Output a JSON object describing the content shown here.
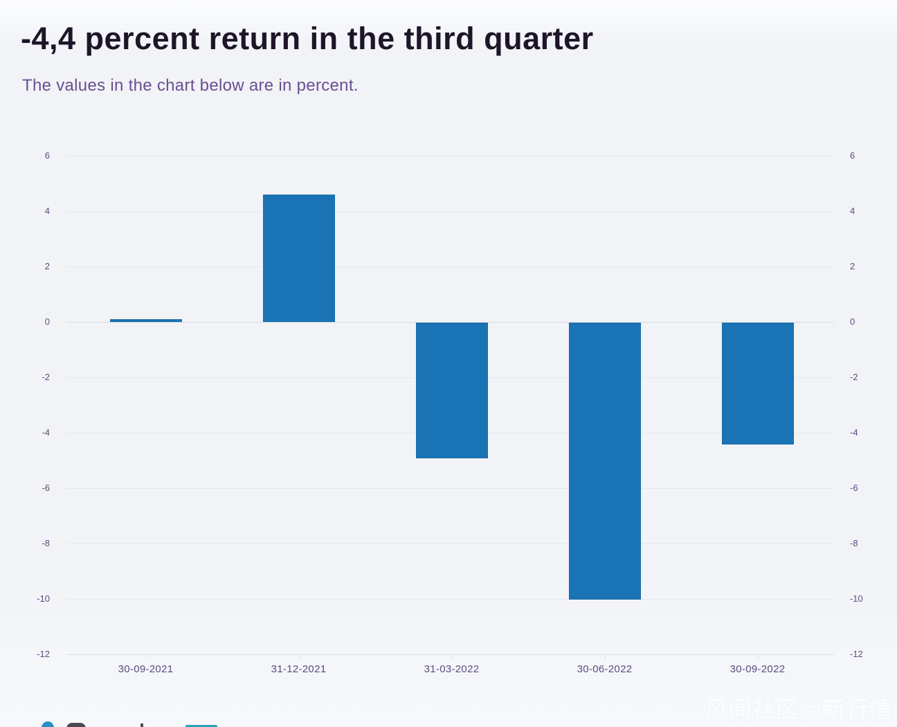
{
  "header": {
    "title": "-4,4 percent return in the third quarter",
    "subtitle": "The values in the chart below are in percent."
  },
  "colors": {
    "bg": "#f1f3f7",
    "title": "#1e1528",
    "subtitle": "#6a4e8f",
    "tick_label": "#5d4a7c",
    "date_label": "#5c4a7d",
    "grid": "#e4e8ef",
    "zero_line": "#d5dae3",
    "axis_line": "#d9dee6",
    "bar": "#1a73b5",
    "legend_dot": "#2a8fc4",
    "legend_dark": "#4a4a55",
    "legend_teal": "#2aa3b8"
  },
  "chart_data": {
    "type": "bar",
    "title": "-4,4 percent return in the third quarter",
    "subtitle": "The values in the chart below are in percent.",
    "unit": "percent",
    "categories": [
      "30-09-2021",
      "31-12-2021",
      "31-03-2022",
      "30-06-2022",
      "30-09-2022"
    ],
    "values": [
      0.1,
      4.6,
      -4.9,
      -10.0,
      -4.4
    ],
    "xlabel": "",
    "ylabel": "",
    "ylim": [
      -12,
      6
    ],
    "yticks": [
      6,
      4,
      2,
      0,
      -2,
      -4,
      -6,
      -8,
      -10,
      -12
    ],
    "grid": true,
    "dual_y_axis_labels": true,
    "legend_position": "bottom-cropped"
  },
  "watermark": {
    "text": "风闻社区@新行情"
  }
}
